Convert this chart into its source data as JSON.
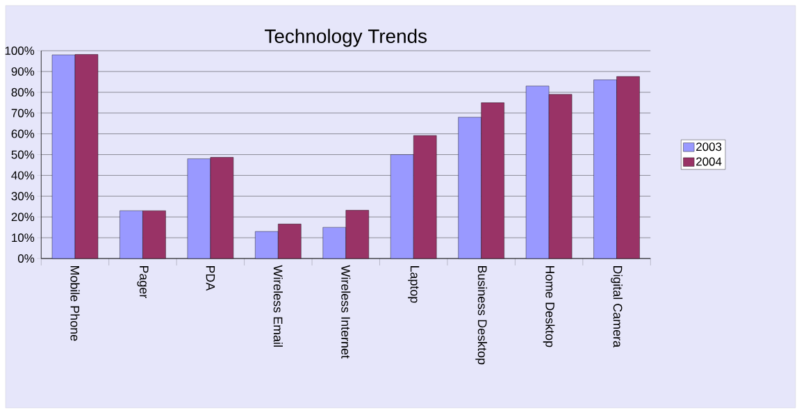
{
  "chart_data": {
    "type": "bar",
    "title": "Technology Trends",
    "categories": [
      "Mobile Phone",
      "Pager",
      "PDA",
      "Wireless Email",
      "Wireless Internet",
      "Laptop",
      "Business Desktop",
      "Home Desktop",
      "Digital Camera"
    ],
    "series": [
      {
        "name": "2003",
        "color": "#9999ff",
        "values": [
          98,
          23,
          48,
          13,
          15,
          50,
          68,
          83,
          86
        ]
      },
      {
        "name": "2004",
        "color": "#993366",
        "values": [
          98.2,
          23,
          48.7,
          16.6,
          23.2,
          59.2,
          75,
          79,
          87.6
        ]
      }
    ],
    "ylim": [
      0,
      100
    ],
    "yticks": [
      {
        "value": 0,
        "label": "0%"
      },
      {
        "value": 10,
        "label": "10%"
      },
      {
        "value": 20,
        "label": "20%"
      },
      {
        "value": 30,
        "label": "30%"
      },
      {
        "value": 40,
        "label": "40%"
      },
      {
        "value": 50,
        "label": "50%"
      },
      {
        "value": 60,
        "label": "60%"
      },
      {
        "value": 70,
        "label": "70%"
      },
      {
        "value": 80,
        "label": "80%"
      },
      {
        "value": 90,
        "label": "90%"
      },
      {
        "value": 100,
        "label": "100%"
      }
    ],
    "grid": "y",
    "legend": "right"
  }
}
